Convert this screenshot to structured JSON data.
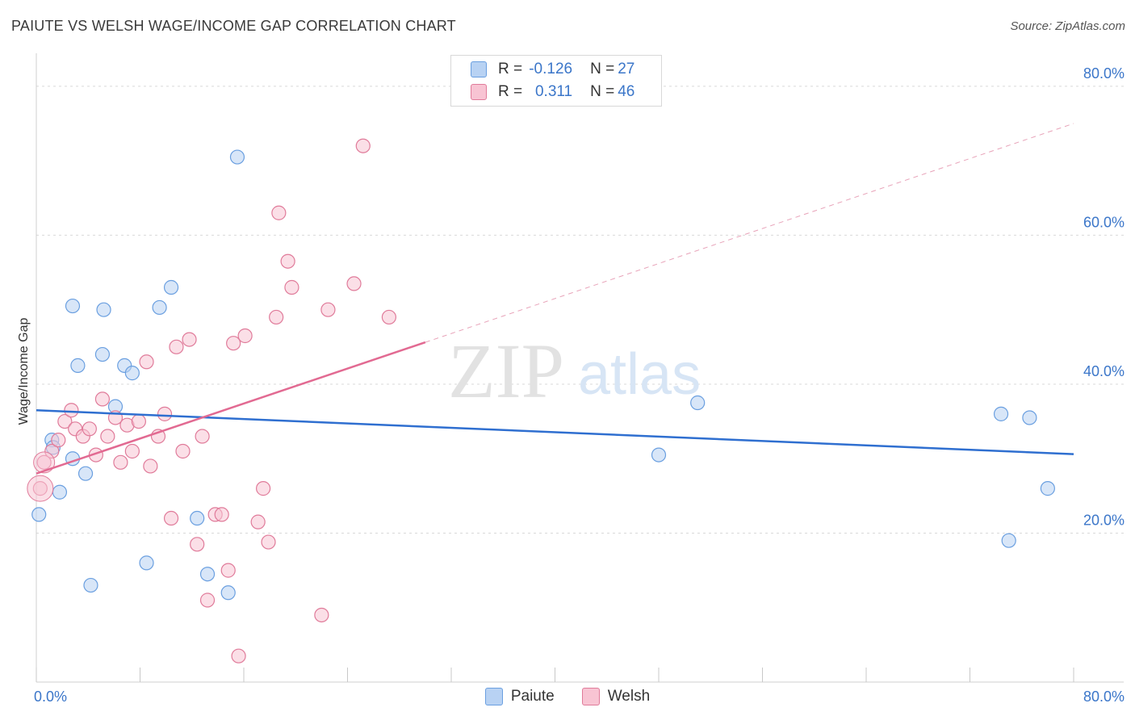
{
  "header": {
    "title": "PAIUTE VS WELSH WAGE/INCOME GAP CORRELATION CHART",
    "source": "Source: ZipAtlas.com"
  },
  "watermark": {
    "zip": "ZIP",
    "atlas": "atlas"
  },
  "legend": {
    "rows": [
      {
        "r_label": "R = ",
        "r_value": "-0.126",
        "n_label": "N = ",
        "n_value": "27"
      },
      {
        "r_label": "R = ",
        "r_value": "0.311",
        "n_label": "N = ",
        "n_value": "46"
      }
    ]
  },
  "chart_data": {
    "type": "scatter",
    "title": "PAIUTE VS WELSH WAGE/INCOME GAP CORRELATION CHART",
    "xlabel": "",
    "ylabel": "Wage/Income Gap",
    "xlim": [
      0,
      80
    ],
    "ylim": [
      0,
      84
    ],
    "x_tick_labels": [
      "0.0%",
      "80.0%"
    ],
    "y_ticks": [
      20,
      40,
      60,
      80
    ],
    "y_tick_labels": [
      "20.0%",
      "40.0%",
      "60.0%",
      "80.0%"
    ],
    "grid": true,
    "legend_position": "bottom-center",
    "series": [
      {
        "name": "Paiute",
        "color": "#6a9fe0",
        "fill": "#b8d2f3",
        "r": "-0.126",
        "n": "27",
        "trend": {
          "x0": 0,
          "y0": 36.5,
          "x1": 80,
          "y1": 30.6,
          "dash_from": null
        },
        "points": [
          [
            0.2,
            22.5
          ],
          [
            1.2,
            32.5
          ],
          [
            1.3,
            31.5
          ],
          [
            1.8,
            25.5
          ],
          [
            2.8,
            30.0
          ],
          [
            2.8,
            50.5
          ],
          [
            3.2,
            42.5
          ],
          [
            3.8,
            28.0
          ],
          [
            4.2,
            13.0
          ],
          [
            5.1,
            44.0
          ],
          [
            5.2,
            50.0
          ],
          [
            6.1,
            37.0
          ],
          [
            6.8,
            42.5
          ],
          [
            7.4,
            41.5
          ],
          [
            8.5,
            16.0
          ],
          [
            9.5,
            50.3
          ],
          [
            10.4,
            53.0
          ],
          [
            12.4,
            22.0
          ],
          [
            13.2,
            14.5
          ],
          [
            14.8,
            12.0
          ],
          [
            15.5,
            70.5
          ],
          [
            48.0,
            30.5
          ],
          [
            51.0,
            37.5
          ],
          [
            74.4,
            36.0
          ],
          [
            76.6,
            35.5
          ],
          [
            78.0,
            26.0
          ],
          [
            75.0,
            19.0
          ]
        ]
      },
      {
        "name": "Welsh",
        "color": "#e07b9a",
        "fill": "#f8c4d3",
        "r": "0.311",
        "n": "46",
        "trend": {
          "x0": 0,
          "y0": 28.0,
          "x1": 80,
          "y1": 75.0,
          "dash_from": 30
        },
        "points": [
          [
            0.3,
            26.0
          ],
          [
            0.6,
            29.5
          ],
          [
            1.2,
            31.0
          ],
          [
            1.7,
            32.5
          ],
          [
            2.2,
            35.0
          ],
          [
            2.7,
            36.5
          ],
          [
            3.0,
            34.0
          ],
          [
            3.6,
            33.0
          ],
          [
            4.1,
            34.0
          ],
          [
            4.6,
            30.5
          ],
          [
            5.1,
            38.0
          ],
          [
            5.5,
            33.0
          ],
          [
            6.1,
            35.5
          ],
          [
            6.5,
            29.5
          ],
          [
            7.0,
            34.5
          ],
          [
            7.4,
            31.0
          ],
          [
            7.9,
            35.0
          ],
          [
            8.5,
            43.0
          ],
          [
            8.8,
            29.0
          ],
          [
            9.4,
            33.0
          ],
          [
            9.9,
            36.0
          ],
          [
            10.4,
            22.0
          ],
          [
            10.8,
            45.0
          ],
          [
            11.3,
            31.0
          ],
          [
            11.8,
            46.0
          ],
          [
            12.4,
            18.5
          ],
          [
            12.8,
            33.0
          ],
          [
            13.2,
            11.0
          ],
          [
            13.8,
            22.5
          ],
          [
            14.3,
            22.5
          ],
          [
            14.8,
            15.0
          ],
          [
            15.2,
            45.5
          ],
          [
            15.6,
            3.5
          ],
          [
            16.1,
            46.5
          ],
          [
            17.1,
            21.5
          ],
          [
            17.5,
            26.0
          ],
          [
            17.9,
            18.8
          ],
          [
            18.5,
            49.0
          ],
          [
            18.7,
            63.0
          ],
          [
            19.4,
            56.5
          ],
          [
            19.7,
            53.0
          ],
          [
            22.0,
            9.0
          ],
          [
            22.5,
            50.0
          ],
          [
            24.5,
            53.5
          ],
          [
            25.2,
            72.0
          ],
          [
            27.2,
            49.0
          ]
        ]
      }
    ]
  }
}
